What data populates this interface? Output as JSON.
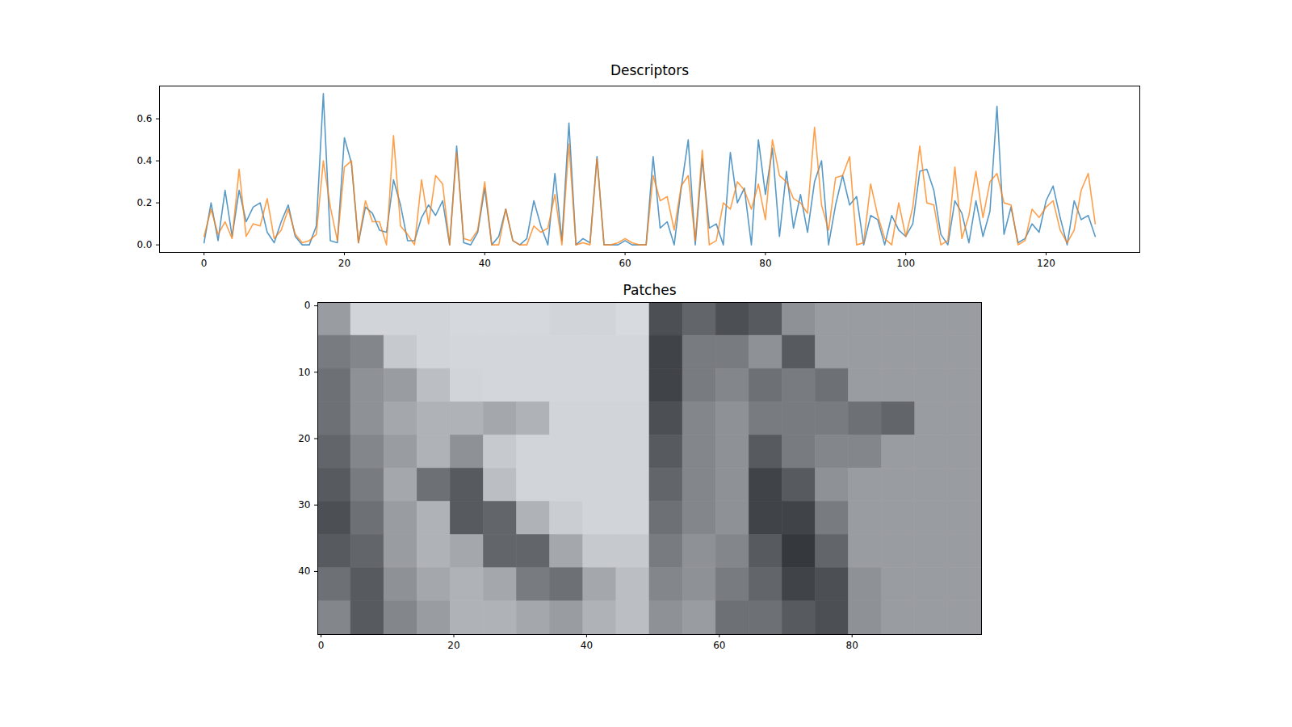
{
  "chart_data": [
    {
      "type": "line",
      "title": "Descriptors",
      "x": [
        0,
        1,
        2,
        3,
        4,
        5,
        6,
        7,
        8,
        9,
        10,
        11,
        12,
        13,
        14,
        15,
        16,
        17,
        18,
        19,
        20,
        21,
        22,
        23,
        24,
        25,
        26,
        27,
        28,
        29,
        30,
        31,
        32,
        33,
        34,
        35,
        36,
        37,
        38,
        39,
        40,
        41,
        42,
        43,
        44,
        45,
        46,
        47,
        48,
        49,
        50,
        51,
        52,
        53,
        54,
        55,
        56,
        57,
        58,
        59,
        60,
        61,
        62,
        63,
        64,
        65,
        66,
        67,
        68,
        69,
        70,
        71,
        72,
        73,
        74,
        75,
        76,
        77,
        78,
        79,
        80,
        81,
        82,
        83,
        84,
        85,
        86,
        87,
        88,
        89,
        90,
        91,
        92,
        93,
        94,
        95,
        96,
        97,
        98,
        99,
        100,
        101,
        102,
        103,
        104,
        105,
        106,
        107,
        108,
        109,
        110,
        111,
        112,
        113,
        114,
        115,
        116,
        117,
        118,
        119,
        120,
        121,
        122,
        123,
        124,
        125,
        126,
        127
      ],
      "series": [
        {
          "color": "#1f77b4",
          "values": [
            0.01,
            0.2,
            0.02,
            0.26,
            0.04,
            0.26,
            0.11,
            0.18,
            0.2,
            0.06,
            0.01,
            0.11,
            0.19,
            0.04,
            0.0,
            0.0,
            0.09,
            0.72,
            0.02,
            0.01,
            0.51,
            0.39,
            0.01,
            0.18,
            0.15,
            0.07,
            0.06,
            0.31,
            0.19,
            0.02,
            0.02,
            0.13,
            0.19,
            0.14,
            0.21,
            0.0,
            0.47,
            0.01,
            0.0,
            0.06,
            0.27,
            0.0,
            0.04,
            0.17,
            0.02,
            0.0,
            0.03,
            0.21,
            0.09,
            0.0,
            0.34,
            0.02,
            0.58,
            0.0,
            0.03,
            0.01,
            0.42,
            0.0,
            0.0,
            0.0,
            0.02,
            0.0,
            0.0,
            0.0,
            0.42,
            0.08,
            0.11,
            0.0,
            0.27,
            0.5,
            0.0,
            0.41,
            0.08,
            0.1,
            0.0,
            0.44,
            0.2,
            0.27,
            0.0,
            0.5,
            0.24,
            0.46,
            0.04,
            0.35,
            0.08,
            0.24,
            0.06,
            0.3,
            0.4,
            0.0,
            0.19,
            0.33,
            0.19,
            0.23,
            0.0,
            0.14,
            0.12,
            0.0,
            0.14,
            0.07,
            0.04,
            0.1,
            0.35,
            0.36,
            0.26,
            0.05,
            0.0,
            0.21,
            0.15,
            0.01,
            0.21,
            0.04,
            0.16,
            0.66,
            0.05,
            0.18,
            0.01,
            0.03,
            0.1,
            0.06,
            0.21,
            0.28,
            0.13,
            0.0,
            0.21,
            0.12,
            0.14,
            0.04
          ]
        },
        {
          "color": "#ff7f0e",
          "values": [
            0.04,
            0.17,
            0.05,
            0.11,
            0.03,
            0.36,
            0.04,
            0.1,
            0.09,
            0.22,
            0.03,
            0.07,
            0.17,
            0.05,
            0.01,
            0.02,
            0.05,
            0.4,
            0.18,
            0.02,
            0.37,
            0.4,
            0.01,
            0.21,
            0.11,
            0.11,
            0.0,
            0.52,
            0.09,
            0.05,
            0.0,
            0.31,
            0.1,
            0.33,
            0.29,
            0.0,
            0.44,
            0.03,
            0.02,
            0.07,
            0.3,
            0.0,
            0.0,
            0.17,
            0.02,
            0.0,
            0.0,
            0.09,
            0.06,
            0.08,
            0.24,
            0.0,
            0.48,
            0.0,
            0.01,
            0.0,
            0.41,
            0.0,
            0.0,
            0.01,
            0.03,
            0.01,
            0.0,
            0.0,
            0.33,
            0.21,
            0.23,
            0.07,
            0.28,
            0.33,
            0.02,
            0.45,
            0.0,
            0.02,
            0.2,
            0.17,
            0.3,
            0.26,
            0.17,
            0.29,
            0.12,
            0.5,
            0.33,
            0.3,
            0.22,
            0.2,
            0.15,
            0.56,
            0.19,
            0.07,
            0.32,
            0.33,
            0.42,
            0.0,
            0.01,
            0.29,
            0.14,
            0.03,
            0.0,
            0.2,
            0.04,
            0.18,
            0.47,
            0.2,
            0.19,
            0.0,
            0.02,
            0.37,
            0.03,
            0.14,
            0.35,
            0.13,
            0.3,
            0.34,
            0.2,
            0.19,
            0.0,
            0.02,
            0.17,
            0.13,
            0.18,
            0.21,
            0.07,
            0.01,
            0.07,
            0.26,
            0.34,
            0.1
          ]
        }
      ],
      "xlim": [
        -6.35,
        133.35
      ],
      "xticks": [
        0,
        20,
        40,
        60,
        80,
        100,
        120
      ],
      "ylim": [
        -0.036,
        0.756
      ],
      "yticks": [
        {
          "value": 0,
          "label": "0.0"
        },
        {
          "value": 0.2,
          "label": "0.2"
        },
        {
          "value": 0.4,
          "label": "0.4"
        },
        {
          "value": 0.6,
          "label": "0.6"
        }
      ]
    },
    {
      "type": "image",
      "title": "Patches",
      "pixels": [
        [
          0.6,
          0.85,
          0.85,
          0.85,
          0.87,
          0.87,
          0.87,
          0.85,
          0.85,
          0.88,
          0.25,
          0.35,
          0.25,
          0.3,
          0.55,
          0.6,
          0.6,
          0.6,
          0.6,
          0.6
        ],
        [
          0.45,
          0.5,
          0.8,
          0.85,
          0.86,
          0.86,
          0.86,
          0.86,
          0.86,
          0.86,
          0.2,
          0.45,
          0.45,
          0.55,
          0.3,
          0.6,
          0.6,
          0.6,
          0.6,
          0.6
        ],
        [
          0.4,
          0.55,
          0.6,
          0.75,
          0.85,
          0.86,
          0.86,
          0.86,
          0.86,
          0.86,
          0.2,
          0.45,
          0.5,
          0.4,
          0.45,
          0.4,
          0.6,
          0.6,
          0.6,
          0.6
        ],
        [
          0.4,
          0.55,
          0.65,
          0.7,
          0.7,
          0.65,
          0.7,
          0.85,
          0.85,
          0.85,
          0.25,
          0.5,
          0.55,
          0.45,
          0.45,
          0.45,
          0.4,
          0.35,
          0.6,
          0.6
        ],
        [
          0.35,
          0.5,
          0.6,
          0.7,
          0.55,
          0.8,
          0.85,
          0.85,
          0.85,
          0.85,
          0.3,
          0.5,
          0.55,
          0.3,
          0.45,
          0.5,
          0.5,
          0.6,
          0.6,
          0.6
        ],
        [
          0.3,
          0.45,
          0.65,
          0.4,
          0.3,
          0.75,
          0.85,
          0.85,
          0.85,
          0.85,
          0.35,
          0.5,
          0.55,
          0.2,
          0.3,
          0.55,
          0.6,
          0.6,
          0.6,
          0.6
        ],
        [
          0.25,
          0.4,
          0.6,
          0.7,
          0.3,
          0.35,
          0.7,
          0.82,
          0.85,
          0.85,
          0.4,
          0.5,
          0.55,
          0.2,
          0.2,
          0.45,
          0.6,
          0.6,
          0.6,
          0.6
        ],
        [
          0.3,
          0.35,
          0.6,
          0.7,
          0.65,
          0.35,
          0.35,
          0.65,
          0.8,
          0.8,
          0.45,
          0.55,
          0.5,
          0.3,
          0.15,
          0.35,
          0.6,
          0.6,
          0.6,
          0.6
        ],
        [
          0.4,
          0.3,
          0.55,
          0.65,
          0.7,
          0.65,
          0.45,
          0.4,
          0.65,
          0.75,
          0.5,
          0.55,
          0.45,
          0.35,
          0.2,
          0.25,
          0.55,
          0.6,
          0.6,
          0.6
        ],
        [
          0.5,
          0.3,
          0.5,
          0.6,
          0.7,
          0.7,
          0.65,
          0.6,
          0.7,
          0.75,
          0.55,
          0.6,
          0.4,
          0.4,
          0.3,
          0.25,
          0.55,
          0.6,
          0.6,
          0.6
        ]
      ],
      "xlim": [
        -0.5,
        99.5
      ],
      "xticks": [
        0,
        20,
        40,
        60,
        80
      ],
      "ylim": [
        49.5,
        -0.5
      ],
      "yticks": [
        0,
        10,
        20,
        30,
        40
      ]
    }
  ]
}
